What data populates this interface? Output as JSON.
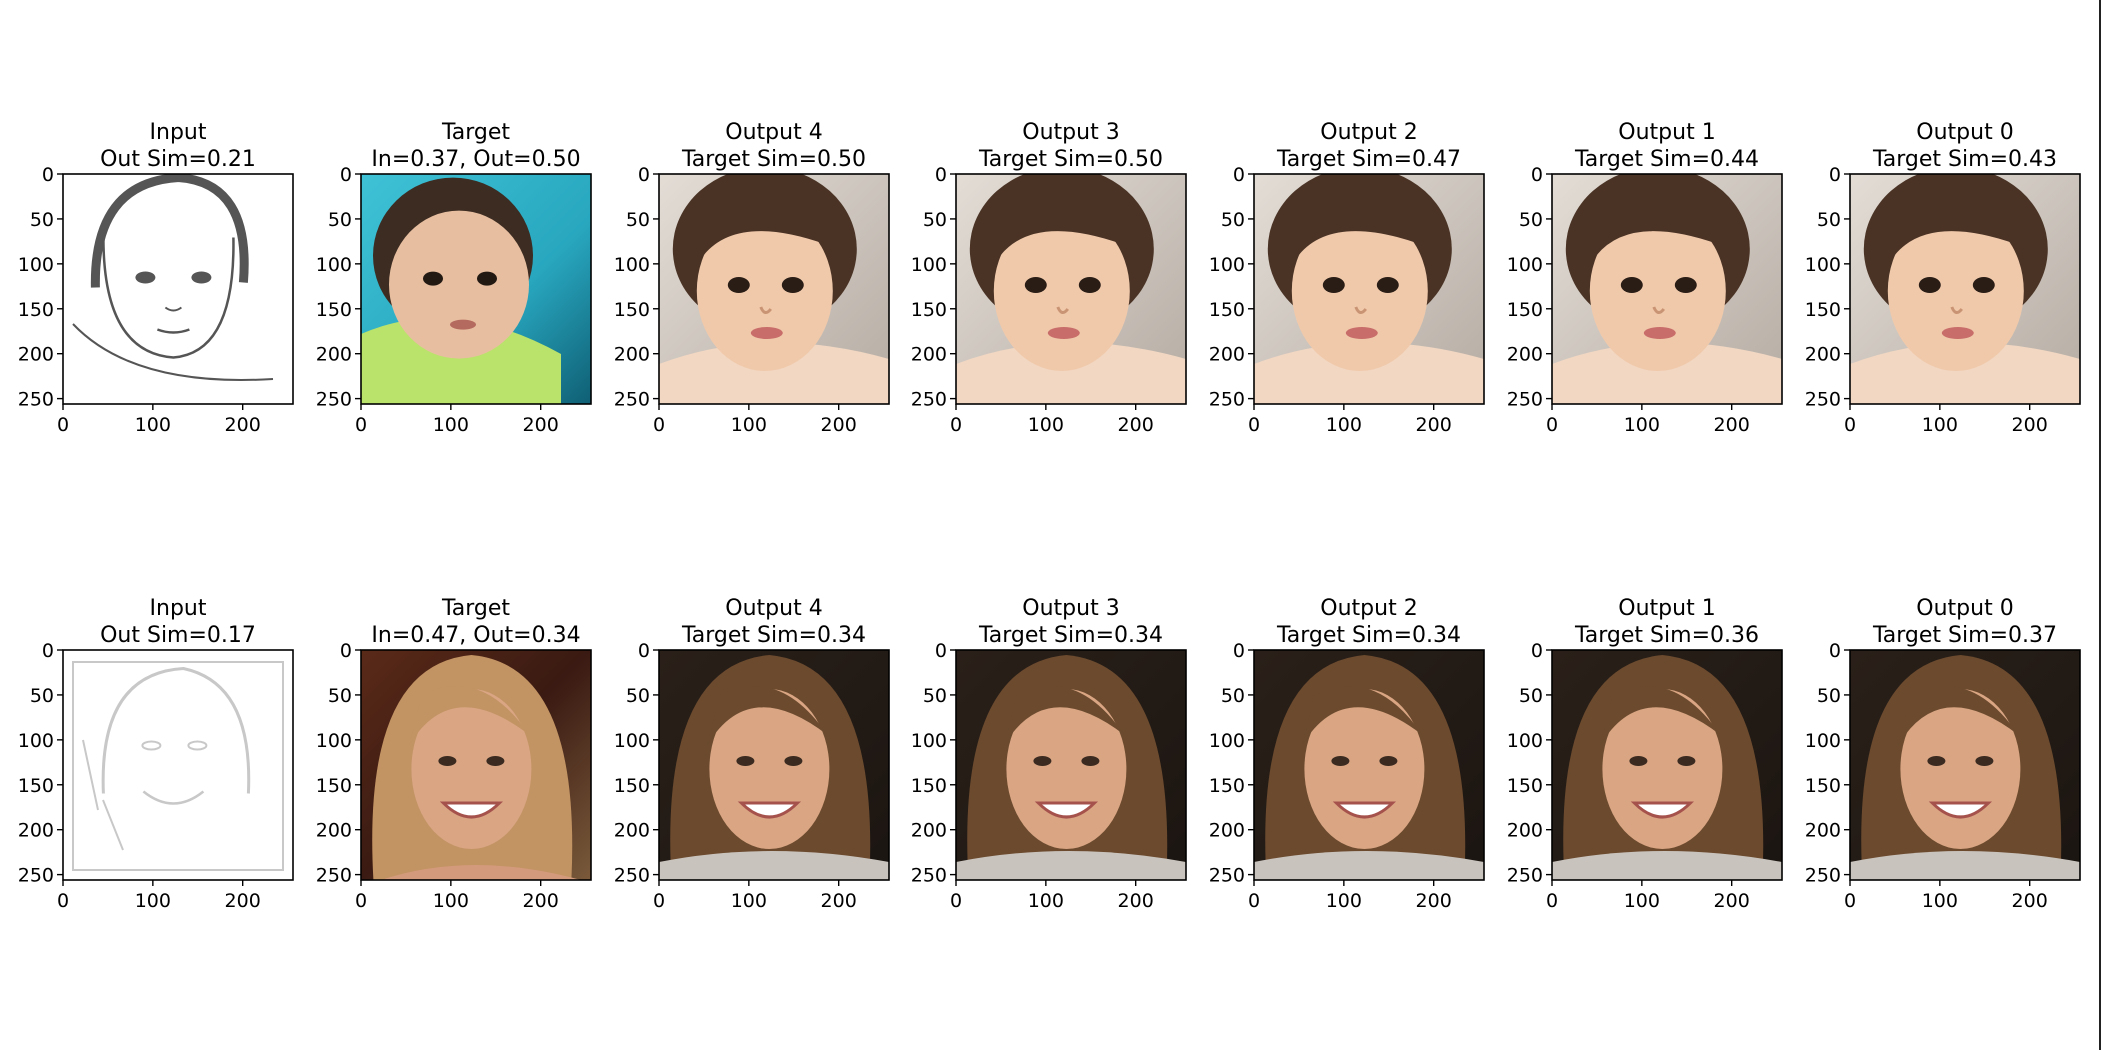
{
  "figure": {
    "rows": [
      {
        "panels": [
          {
            "title_line1": "Input",
            "title_line2": "Out Sim=0.21",
            "kind": "sketch",
            "subject": "child"
          },
          {
            "title_line1": "Target",
            "title_line2": "In=0.37, Out=0.50",
            "kind": "photo",
            "subject": "baby"
          },
          {
            "title_line1": "Output 4",
            "title_line2": "Target Sim=0.50",
            "kind": "generated",
            "subject": "child"
          },
          {
            "title_line1": "Output 3",
            "title_line2": "Target Sim=0.50",
            "kind": "generated",
            "subject": "child"
          },
          {
            "title_line1": "Output 2",
            "title_line2": "Target Sim=0.47",
            "kind": "generated",
            "subject": "child"
          },
          {
            "title_line1": "Output 1",
            "title_line2": "Target Sim=0.44",
            "kind": "generated",
            "subject": "child"
          },
          {
            "title_line1": "Output 0",
            "title_line2": "Target Sim=0.43",
            "kind": "generated",
            "subject": "child"
          }
        ]
      },
      {
        "panels": [
          {
            "title_line1": "Input",
            "title_line2": "Out Sim=0.17",
            "kind": "sketch",
            "subject": "woman"
          },
          {
            "title_line1": "Target",
            "title_line2": "In=0.47, Out=0.34",
            "kind": "photo",
            "subject": "woman-blonde"
          },
          {
            "title_line1": "Output 4",
            "title_line2": "Target Sim=0.34",
            "kind": "generated",
            "subject": "woman"
          },
          {
            "title_line1": "Output 3",
            "title_line2": "Target Sim=0.34",
            "kind": "generated",
            "subject": "woman"
          },
          {
            "title_line1": "Output 2",
            "title_line2": "Target Sim=0.34",
            "kind": "generated",
            "subject": "woman"
          },
          {
            "title_line1": "Output 1",
            "title_line2": "Target Sim=0.36",
            "kind": "generated",
            "subject": "woman"
          },
          {
            "title_line1": "Output 0",
            "title_line2": "Target Sim=0.37",
            "kind": "generated",
            "subject": "woman"
          }
        ]
      }
    ],
    "x_ticks": [
      "0",
      "100",
      "200"
    ],
    "y_ticks": [
      "0",
      "50",
      "100",
      "150",
      "200",
      "250"
    ],
    "x_tick_values": [
      0,
      100,
      200
    ],
    "y_tick_values": [
      0,
      50,
      100,
      150,
      200,
      250
    ],
    "image_extent": 256
  },
  "colors": {
    "sketch_bg": "#ffffff",
    "sketch_ink_dark": "#555555",
    "sketch_ink_light": "#c8c8c8",
    "child_skin": "#f0c9ab",
    "child_hair": "#4a3325",
    "child_bg": "#d3ccc4",
    "baby_bg": "#28a7bf",
    "baby_skin": "#e7bfa0",
    "baby_shirt": "#b9e36a",
    "woman_bg": "#1b1511",
    "woman_hair": "#6b4a2e",
    "woman_skin": "#d9a583",
    "blonde_hair": "#c29363",
    "blonde_bg": "#3a1a12"
  }
}
